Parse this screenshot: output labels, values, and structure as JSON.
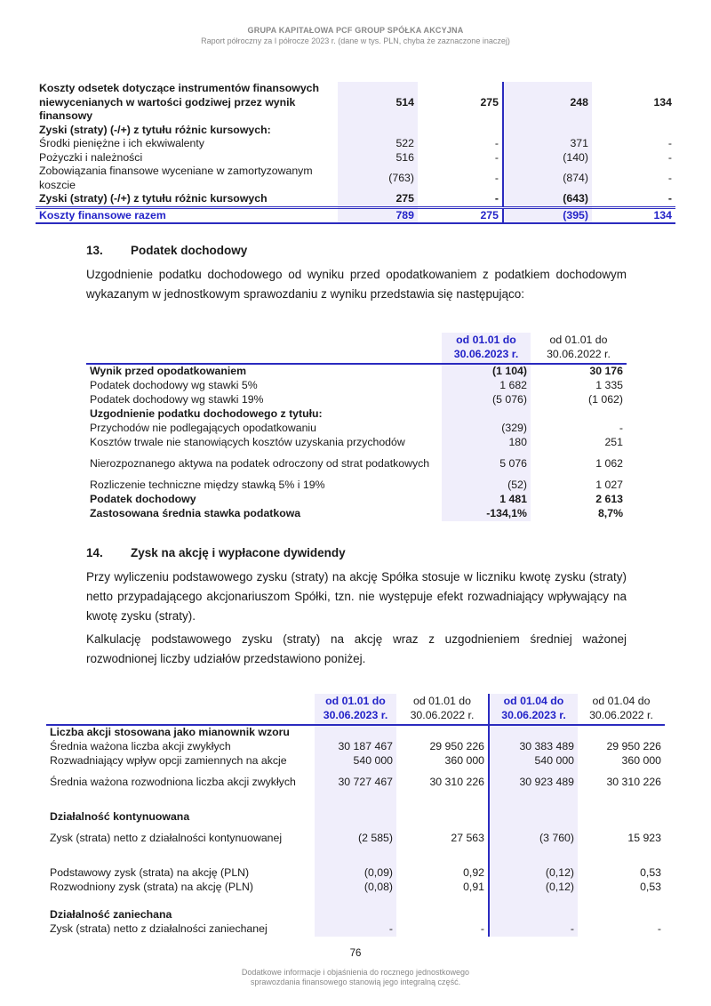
{
  "header": {
    "company": "GRUPA KAPITAŁOWA PCF GROUP SPÓŁKA AKCYJNA",
    "subtitle": "Raport półroczny za I półrocze 2023 r. (dane w tys. PLN, chyba że zaznaczone inaczej)"
  },
  "table1": {
    "rows": [
      {
        "label": "Koszty odsetek dotyczące instrumentów finansowych niewycenianych w wartości godziwej przez wynik finansowy",
        "values": [
          "514",
          "275",
          "248",
          "134"
        ],
        "bold": true
      },
      {
        "label": "Zyski (straty) (-/+) z tytułu różnic kursowych:",
        "values": [
          "",
          "",
          "",
          ""
        ],
        "bold": true
      },
      {
        "label": "Środki pieniężne i ich ekwiwalenty",
        "values": [
          "522",
          "-",
          "371",
          "-"
        ]
      },
      {
        "label": "Pożyczki i należności",
        "values": [
          "516",
          "-",
          "(140)",
          "-"
        ]
      },
      {
        "label": "Zobowiązania finansowe wyceniane w zamortyzowanym koszcie",
        "values": [
          "(763)",
          "-",
          "(874)",
          "-"
        ]
      },
      {
        "label": "Zyski (straty) (-/+) z tytułu różnic kursowych",
        "values": [
          "275",
          "-",
          "(643)",
          "-"
        ],
        "bold": true
      }
    ],
    "total": {
      "label": "Koszty finansowe razem",
      "values": [
        "789",
        "275",
        "(395)",
        "134"
      ]
    }
  },
  "section13": {
    "number": "13.",
    "title": "Podatek dochodowy",
    "text": "Uzgodnienie podatku dochodowego od wyniku przed opodatkowaniem z podatkiem dochodowym wykazanym w jednostkowym sprawozdaniu z wyniku przedstawia się następująco:"
  },
  "table2": {
    "headers": [
      "od 01.01 do 30.06.2023 r.",
      "od 01.01 do 30.06.2022 r."
    ],
    "rows": [
      {
        "label": "Wynik przed opodatkowaniem",
        "values": [
          "(1 104)",
          "30 176"
        ],
        "bold": true
      },
      {
        "label": "Podatek dochodowy wg stawki 5%",
        "values": [
          "1 682",
          "1 335"
        ]
      },
      {
        "label": "Podatek dochodowy wg stawki 19%",
        "values": [
          "(5 076)",
          "(1 062)"
        ]
      },
      {
        "label": "Uzgodnienie podatku dochodowego z tytułu:",
        "values": [
          "",
          ""
        ],
        "bold": true
      },
      {
        "label": "Przychodów nie podlegających opodatkowaniu",
        "values": [
          "(329)",
          "-"
        ]
      },
      {
        "label": "Kosztów trwale nie stanowiących kosztów uzyskania przychodów",
        "values": [
          "180",
          "251"
        ]
      },
      {
        "label": "Nierozpoznanego aktywa na podatek odroczony od strat podatkowych",
        "values": [
          "5 076",
          "1 062"
        ]
      },
      {
        "label": "Rozliczenie techniczne między stawką 5% i 19%",
        "values": [
          "(52)",
          "1 027"
        ]
      },
      {
        "label": "Podatek dochodowy",
        "values": [
          "1 481",
          "2 613"
        ],
        "bold": true
      },
      {
        "label": "Zastosowana średnia stawka podatkowa",
        "values": [
          "-134,1%",
          "8,7%"
        ],
        "bold": true
      }
    ]
  },
  "section14": {
    "number": "14.",
    "title": "Zysk na akcję i wypłacone dywidendy",
    "text1": "Przy wyliczeniu podstawowego zysku (straty) na akcję Spółka stosuje w liczniku kwotę zysku (straty) netto przypadającego akcjonariuszom Spółki, tzn. nie występuje efekt rozwadniający wpływający na kwotę zysku (straty).",
    "text2": "Kalkulację podstawowego zysku (straty) na akcję wraz z uzgodnieniem średniej ważonej rozwodnionej liczby udziałów przedstawiono poniżej."
  },
  "table3": {
    "headers": [
      "od 01.01 do 30.06.2023 r.",
      "od 01.01 do 30.06.2022 r.",
      "od 01.04 do 30.06.2023 r.",
      "od 01.04 do 30.06.2022 r."
    ],
    "rows": [
      {
        "label": "Liczba akcji stosowana jako mianownik wzoru",
        "values": [
          "",
          "",
          "",
          ""
        ],
        "bold": true
      },
      {
        "label": "Średnia ważona liczba akcji zwykłych",
        "values": [
          "30 187 467",
          "29 950 226",
          "30 383 489",
          "29 950 226"
        ]
      },
      {
        "label": "Rozwadniający wpływ opcji zamiennych na akcje",
        "values": [
          "540 000",
          "360 000",
          "540 000",
          "360 000"
        ]
      },
      {
        "label": "Średnia ważona rozwodniona liczba akcji zwykłych",
        "values": [
          "30 727 467",
          "30 310 226",
          "30 923 489",
          "30 310 226"
        ]
      },
      {
        "label": "",
        "values": [
          "",
          "",
          "",
          ""
        ]
      },
      {
        "label": "Działalność kontynuowana",
        "values": [
          "",
          "",
          "",
          ""
        ],
        "bold": true
      },
      {
        "label": "Zysk (strata) netto z działalności kontynuowanej",
        "values": [
          "(2 585)",
          "27 563",
          "(3 760)",
          "15 923"
        ]
      },
      {
        "label": "",
        "values": [
          "",
          "",
          "",
          ""
        ]
      },
      {
        "label": "Podstawowy zysk (strata) na akcję (PLN)",
        "values": [
          "(0,09)",
          "0,92",
          "(0,12)",
          "0,53"
        ]
      },
      {
        "label": "Rozwodniony zysk (strata) na akcję (PLN)",
        "values": [
          "(0,08)",
          "0,91",
          "(0,12)",
          "0,53"
        ]
      },
      {
        "label": "",
        "values": [
          "",
          "",
          "",
          ""
        ]
      },
      {
        "label": "Działalność zaniechana",
        "values": [
          "",
          "",
          "",
          ""
        ],
        "bold": true
      },
      {
        "label": "Zysk (strata) netto z działalności zaniechanej",
        "values": [
          "-",
          "-",
          "-",
          "-"
        ]
      }
    ]
  },
  "footer": {
    "page": "76",
    "note": "Dodatkowe informacje i objaśnienia do rocznego jednostkowego sprawozdania finansowego stanowią jego integralną część."
  },
  "colors": {
    "accent": "#2323c8",
    "shade": "#f0eefb"
  }
}
